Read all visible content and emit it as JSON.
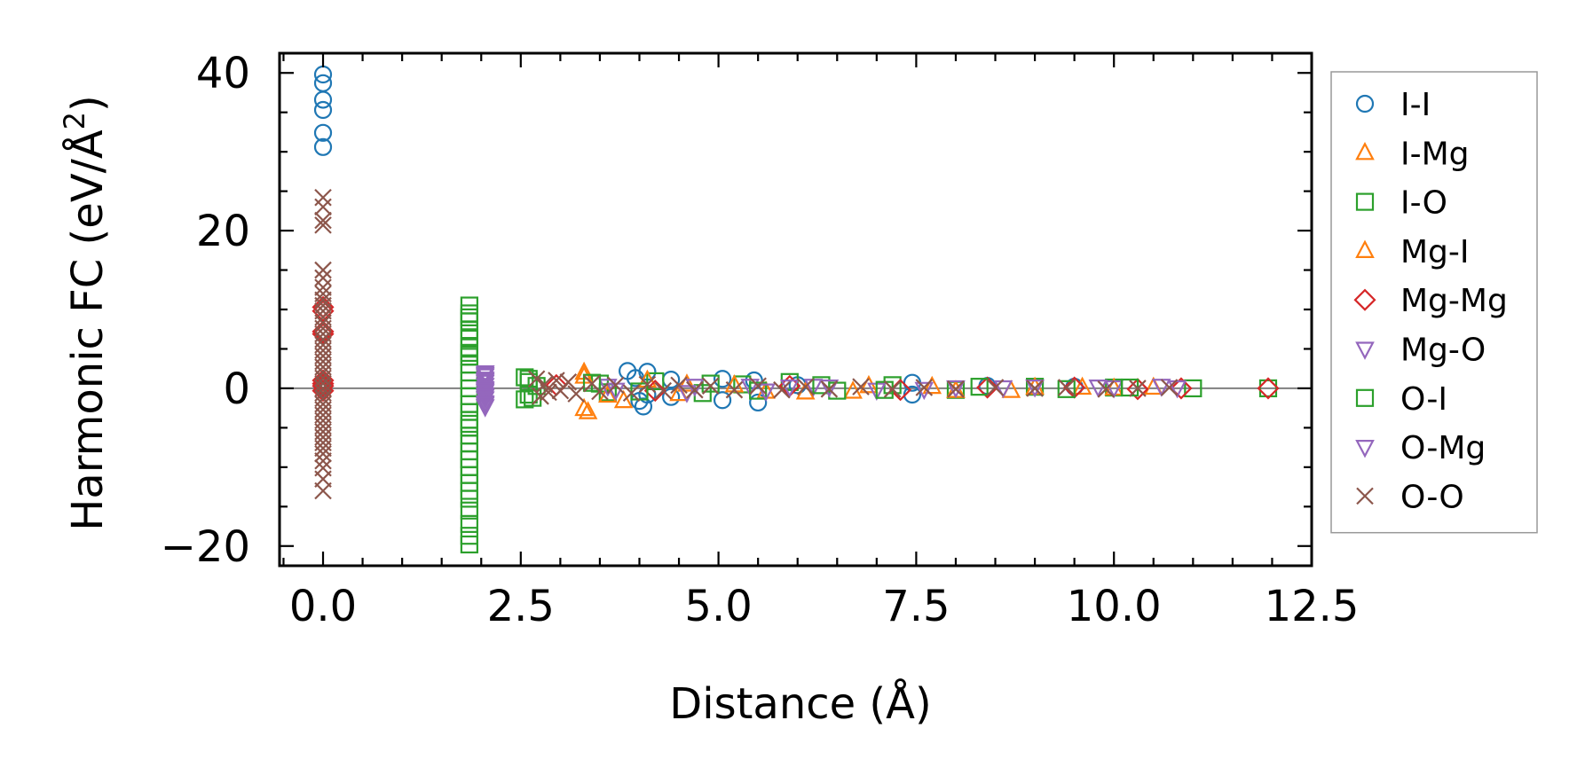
{
  "chart_data": {
    "type": "scatter",
    "xlabel": "Distance (Å)",
    "ylabel_main": "Harmonic FC (eV/Å",
    "ylabel_sup": "2",
    "ylabel_close": ")",
    "xlim": [
      -0.55,
      12.5
    ],
    "ylim": [
      -22.5,
      42.5
    ],
    "x_ticks": [
      {
        "value": 0.0,
        "label": "0.0"
      },
      {
        "value": 2.5,
        "label": "2.5"
      },
      {
        "value": 5.0,
        "label": "5.0"
      },
      {
        "value": 7.5,
        "label": "7.5"
      },
      {
        "value": 10.0,
        "label": "10.0"
      },
      {
        "value": 12.5,
        "label": "12.5"
      }
    ],
    "y_ticks": [
      {
        "value": -20,
        "label": "−20"
      },
      {
        "value": 0,
        "label": "0"
      },
      {
        "value": 20,
        "label": "20"
      },
      {
        "value": 40,
        "label": "40"
      }
    ],
    "x_minor_step": 0.5,
    "y_minor_step": 5,
    "zero_line": true,
    "legend_position": "right, outside plot",
    "series": [
      {
        "name": "I-I",
        "marker": "circle",
        "color": "#1f77b4",
        "points": [
          [
            0,
            39.8
          ],
          [
            0,
            38.7
          ],
          [
            0,
            36.6
          ],
          [
            0,
            35.3
          ],
          [
            0,
            32.4
          ],
          [
            0,
            30.6
          ],
          [
            0,
            0.2
          ],
          [
            0,
            -0.1
          ],
          [
            3.85,
            2.2
          ],
          [
            3.95,
            1.3
          ],
          [
            4.0,
            -1.6
          ],
          [
            4.05,
            -2.3
          ],
          [
            4.1,
            2.1
          ],
          [
            4.1,
            -0.8
          ],
          [
            4.4,
            1.1
          ],
          [
            4.4,
            -1.1
          ],
          [
            5.05,
            1.2
          ],
          [
            5.05,
            -1.5
          ],
          [
            5.45,
            1.0
          ],
          [
            5.5,
            -1.8
          ],
          [
            6.0,
            0.4
          ],
          [
            7.45,
            0.7
          ],
          [
            7.45,
            -0.8
          ],
          [
            8.4,
            0.3
          ],
          [
            9.5,
            0.2
          ]
        ]
      },
      {
        "name": "I-Mg",
        "marker": "triangle-up",
        "color": "#ff7f0e",
        "points": [
          [
            3.3,
            2.0
          ],
          [
            3.3,
            -2.6
          ],
          [
            3.35,
            -3.0
          ],
          [
            3.8,
            -1.6
          ],
          [
            4.6,
            0.5
          ],
          [
            5.6,
            -0.4
          ],
          [
            6.7,
            -0.4
          ],
          [
            7.7,
            0.2
          ],
          [
            8.7,
            -0.3
          ],
          [
            9.6,
            0.1
          ],
          [
            10.5,
            0.1
          ]
        ]
      },
      {
        "name": "I-O",
        "marker": "square",
        "color": "#2ca02c",
        "points": [
          [
            1.85,
            10.5
          ],
          [
            1.85,
            9.5
          ],
          [
            1.85,
            8.5
          ],
          [
            1.85,
            7.4
          ],
          [
            1.85,
            6.3
          ],
          [
            1.85,
            5.2
          ],
          [
            1.85,
            4.0
          ],
          [
            1.85,
            3.0
          ],
          [
            1.85,
            2.0
          ],
          [
            1.85,
            1.0
          ],
          [
            1.85,
            0.0
          ],
          [
            1.85,
            -1.0
          ],
          [
            1.85,
            -2.0
          ],
          [
            1.85,
            -3.0
          ],
          [
            1.85,
            -4.0
          ],
          [
            1.85,
            -5.0
          ],
          [
            1.85,
            -6.0
          ],
          [
            1.85,
            -7.0
          ],
          [
            1.85,
            -8.0
          ],
          [
            1.85,
            -9.0
          ],
          [
            1.85,
            -10.0
          ],
          [
            1.85,
            -11.0
          ],
          [
            1.85,
            -12.0
          ],
          [
            1.85,
            -13.0
          ],
          [
            1.85,
            -14.0
          ],
          [
            1.85,
            -15.5
          ],
          [
            1.85,
            -17.2
          ],
          [
            1.85,
            -18.7
          ],
          [
            1.85,
            -19.8
          ],
          [
            2.55,
            1.4
          ],
          [
            2.55,
            -1.4
          ],
          [
            2.6,
            0.8
          ],
          [
            2.6,
            -0.8
          ],
          [
            2.7,
            0.3
          ],
          [
            3.5,
            0.6
          ],
          [
            3.6,
            -0.5
          ],
          [
            4.2,
            0.9
          ],
          [
            4.8,
            -0.6
          ],
          [
            5.3,
            0.5
          ],
          [
            5.9,
            0.8
          ],
          [
            6.5,
            -0.3
          ],
          [
            7.2,
            0.4
          ],
          [
            8.0,
            -0.2
          ],
          [
            9.0,
            0.2
          ],
          [
            10.0,
            0.1
          ],
          [
            11.0,
            0.0
          ],
          [
            11.95,
            0.0
          ]
        ]
      },
      {
        "name": "Mg-I",
        "marker": "triangle-up",
        "color": "#ff7f0e",
        "points": [
          [
            3.3,
            1.5
          ],
          [
            3.6,
            -0.9
          ],
          [
            4.1,
            1.0
          ],
          [
            4.5,
            -0.7
          ],
          [
            5.2,
            0.4
          ],
          [
            6.1,
            -0.5
          ],
          [
            6.9,
            0.3
          ],
          [
            8.0,
            -0.3
          ],
          [
            9.0,
            0.1
          ],
          [
            10.0,
            0.0
          ]
        ]
      },
      {
        "name": "Mg-Mg",
        "marker": "diamond",
        "color": "#d62728",
        "points": [
          [
            0,
            10.3
          ],
          [
            0,
            9.8
          ],
          [
            0,
            7.2
          ],
          [
            0,
            6.9
          ],
          [
            0,
            1.0
          ],
          [
            0,
            0.3
          ],
          [
            0,
            -0.3
          ],
          [
            0,
            0.6
          ],
          [
            2.95,
            0.4
          ],
          [
            4.2,
            -0.3
          ],
          [
            5.9,
            0.3
          ],
          [
            7.3,
            -0.2
          ],
          [
            8.4,
            0.1
          ],
          [
            9.5,
            0.1
          ],
          [
            10.3,
            -0.1
          ],
          [
            10.85,
            0.0
          ],
          [
            11.95,
            0.0
          ]
        ]
      },
      {
        "name": "Mg-O",
        "marker": "triangle-down",
        "color": "#9467bd",
        "points": [
          [
            2.05,
            2.0
          ],
          [
            2.05,
            1.6
          ],
          [
            2.05,
            1.2
          ],
          [
            2.05,
            0.8
          ],
          [
            2.05,
            0.4
          ],
          [
            2.05,
            0.0
          ],
          [
            2.05,
            -0.4
          ],
          [
            2.05,
            -0.8
          ],
          [
            2.05,
            -1.3
          ],
          [
            2.05,
            -1.8
          ],
          [
            2.05,
            -2.3
          ],
          [
            3.6,
            0.3
          ],
          [
            4.6,
            -0.5
          ],
          [
            5.4,
            0.3
          ],
          [
            5.9,
            0.2
          ],
          [
            6.2,
            0.3
          ],
          [
            7.0,
            -0.2
          ],
          [
            8.0,
            0.1
          ],
          [
            9.0,
            0.2
          ],
          [
            10.0,
            0.1
          ],
          [
            10.6,
            0.3
          ],
          [
            10.8,
            0.1
          ]
        ]
      },
      {
        "name": "O-I",
        "marker": "square",
        "color": "#2ca02c",
        "points": [
          [
            1.85,
            9.0
          ],
          [
            1.85,
            4.5
          ],
          [
            1.85,
            -4.5
          ],
          [
            1.85,
            -9.0
          ],
          [
            2.6,
            1.2
          ],
          [
            2.65,
            -1.2
          ],
          [
            3.4,
            0.7
          ],
          [
            4.0,
            -0.4
          ],
          [
            4.9,
            0.6
          ],
          [
            5.5,
            -0.3
          ],
          [
            6.3,
            0.4
          ],
          [
            7.1,
            -0.2
          ],
          [
            8.3,
            0.2
          ],
          [
            9.4,
            -0.1
          ],
          [
            10.2,
            0.1
          ]
        ]
      },
      {
        "name": "O-Mg",
        "marker": "triangle-down",
        "color": "#9467bd",
        "points": [
          [
            2.05,
            1.8
          ],
          [
            2.05,
            1.0
          ],
          [
            2.05,
            -0.2
          ],
          [
            2.05,
            -1.0
          ],
          [
            2.05,
            -2.0
          ],
          [
            3.7,
            -0.2
          ],
          [
            4.7,
            0.3
          ],
          [
            5.6,
            -0.3
          ],
          [
            6.4,
            0.2
          ],
          [
            7.6,
            -0.1
          ],
          [
            8.6,
            0.1
          ],
          [
            9.8,
            0.2
          ]
        ]
      },
      {
        "name": "O-O",
        "marker": "x",
        "color": "#8c564b",
        "points": [
          [
            0,
            24.2
          ],
          [
            0,
            23.0
          ],
          [
            0,
            21.3
          ],
          [
            0,
            20.7
          ],
          [
            0,
            15.0
          ],
          [
            0,
            14.0
          ],
          [
            0,
            12.8
          ],
          [
            0,
            12.0
          ],
          [
            0,
            11.2
          ],
          [
            0,
            10.5
          ],
          [
            0,
            9.8
          ],
          [
            0,
            9.0
          ],
          [
            0,
            8.3
          ],
          [
            0,
            7.6
          ],
          [
            0,
            6.9
          ],
          [
            0,
            6.2
          ],
          [
            0,
            5.5
          ],
          [
            0,
            4.8
          ],
          [
            0,
            4.1
          ],
          [
            0,
            3.4
          ],
          [
            0,
            2.7
          ],
          [
            0,
            2.0
          ],
          [
            0,
            1.3
          ],
          [
            0,
            0.6
          ],
          [
            0,
            0.0
          ],
          [
            0,
            -0.6
          ],
          [
            0,
            -1.3
          ],
          [
            0,
            -2.0
          ],
          [
            0,
            -2.7
          ],
          [
            0,
            -3.4
          ],
          [
            0,
            -4.1
          ],
          [
            0,
            -4.8
          ],
          [
            0,
            -5.5
          ],
          [
            0,
            -6.2
          ],
          [
            0,
            -6.9
          ],
          [
            0,
            -7.6
          ],
          [
            0,
            -8.3
          ],
          [
            0,
            -9.2
          ],
          [
            0,
            -10.1
          ],
          [
            0,
            -11.5
          ],
          [
            0,
            -13.0
          ],
          [
            2.7,
            1.2
          ],
          [
            2.75,
            -1.0
          ],
          [
            2.8,
            0.5
          ],
          [
            2.85,
            -0.5
          ],
          [
            2.95,
            1.0
          ],
          [
            3.0,
            -0.3
          ],
          [
            3.1,
            0.8
          ],
          [
            3.2,
            -0.7
          ],
          [
            3.4,
            0.6
          ],
          [
            3.5,
            -0.4
          ],
          [
            3.7,
            0.4
          ],
          [
            3.9,
            -0.6
          ],
          [
            4.1,
            0.5
          ],
          [
            4.3,
            -0.3
          ],
          [
            4.5,
            0.4
          ],
          [
            4.7,
            -0.2
          ],
          [
            4.9,
            0.3
          ],
          [
            5.2,
            -0.2
          ],
          [
            5.5,
            0.3
          ],
          [
            5.8,
            -0.2
          ],
          [
            6.1,
            0.2
          ],
          [
            6.4,
            -0.1
          ],
          [
            6.8,
            0.2
          ],
          [
            7.2,
            -0.1
          ],
          [
            7.6,
            0.1
          ],
          [
            8.0,
            -0.1
          ],
          [
            8.5,
            0.1
          ],
          [
            9.0,
            0.0
          ],
          [
            9.4,
            0.1
          ],
          [
            9.9,
            -0.1
          ],
          [
            10.3,
            0.0
          ],
          [
            10.7,
            0.1
          ]
        ]
      }
    ]
  }
}
